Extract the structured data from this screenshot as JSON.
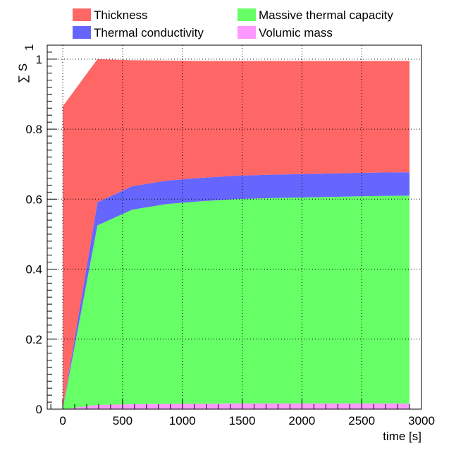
{
  "chart_data": {
    "type": "area",
    "stacked": true,
    "x": [
      0,
      290,
      580,
      870,
      1160,
      1450,
      1740,
      2030,
      2320,
      2610,
      2900
    ],
    "series": [
      {
        "name": "Volumic mass",
        "color": "#ff99ff",
        "values": [
          0,
          0.012,
          0.014,
          0.015,
          0.015,
          0.016,
          0.016,
          0.016,
          0.016,
          0.016,
          0.016
        ]
      },
      {
        "name": "Massive thermal capacity",
        "color": "#66ff66",
        "values": [
          0,
          0.513,
          0.556,
          0.571,
          0.579,
          0.584,
          0.587,
          0.589,
          0.591,
          0.593,
          0.594
        ]
      },
      {
        "name": "Thermal conductivity",
        "color": "#6666ff",
        "values": [
          0,
          0.066,
          0.067,
          0.067,
          0.067,
          0.067,
          0.067,
          0.067,
          0.067,
          0.067,
          0.067
        ]
      },
      {
        "name": "Thickness",
        "color": "#ff6666",
        "values": [
          0.865,
          0.409,
          0.36,
          0.343,
          0.334,
          0.328,
          0.325,
          0.323,
          0.321,
          0.319,
          0.318
        ]
      }
    ],
    "xlabel": "time [s]",
    "ylabel": "∑ S",
    "ylabel_sub": "1",
    "xlim": [
      -130,
      3000
    ],
    "ylim": [
      0,
      1.04
    ],
    "xticks": [
      0,
      500,
      1000,
      1500,
      2000,
      2500,
      3000
    ],
    "yticks": [
      0,
      0.2,
      0.4,
      0.6,
      0.8,
      1
    ],
    "ytick_labels": [
      "0",
      "0.2",
      "0.4",
      "0.6",
      "0.8",
      "1"
    ],
    "grid": true,
    "legend": [
      {
        "label": "Thickness",
        "color": "#ff6666"
      },
      {
        "label": "Massive thermal capacity",
        "color": "#66ff66"
      },
      {
        "label": "Thermal conductivity",
        "color": "#6666ff"
      },
      {
        "label": "Volumic mass",
        "color": "#ff99ff"
      }
    ],
    "legend_position": "top"
  }
}
